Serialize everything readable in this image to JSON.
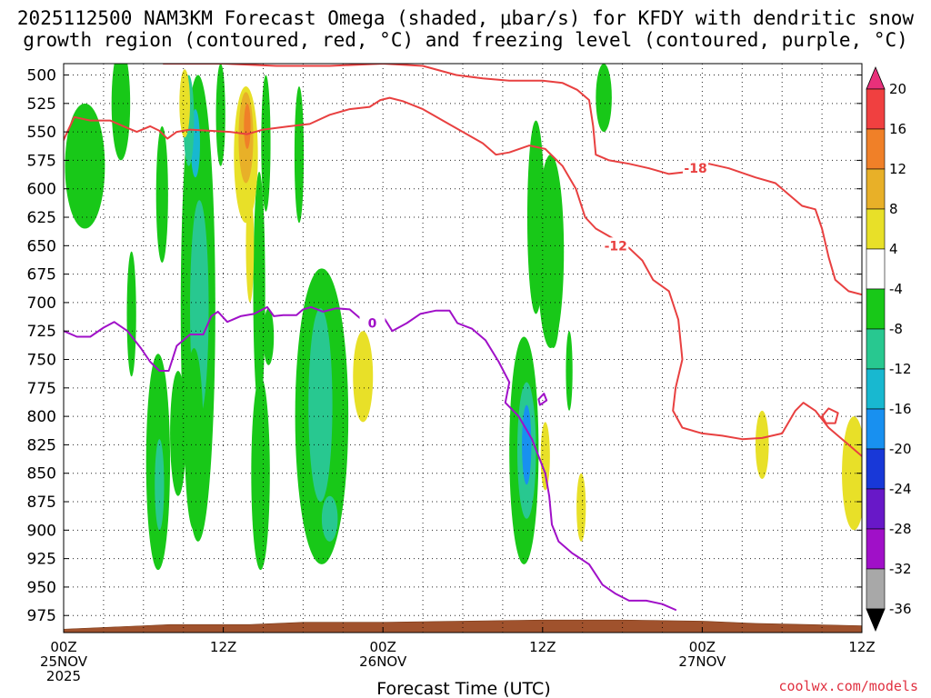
{
  "header": {
    "title_line1": "2025112500 NAM3KM Forecast Omega (shaded, μbar/s) for KFDY with dendritic snow",
    "title_line2": "growth region (contoured, red, °C) and freezing level (contoured, purple, °C)"
  },
  "footer": {
    "credit": "coolwx.com/models"
  },
  "chart_data": {
    "type": "time-height cross section",
    "title": "2025112500 NAM3KM Forecast Omega (shaded, μbar/s) for KFDY with dendritic snow growth region (contoured, red, °C) and freezing level (contoured, purple, °C)",
    "xlabel": "Forecast Time (UTC)",
    "ylabel": "",
    "x_range_hours": [
      0,
      60
    ],
    "y_range_hpa": [
      490,
      990
    ],
    "grid": true,
    "y_ticks": [
      500,
      525,
      550,
      575,
      600,
      625,
      650,
      675,
      700,
      725,
      750,
      775,
      800,
      825,
      850,
      875,
      900,
      925,
      950,
      975
    ],
    "x_ticks": [
      {
        "hour": 0,
        "line1": "00Z",
        "line2": "25NOV",
        "line3": "2025"
      },
      {
        "hour": 12,
        "line1": "12Z",
        "line2": "",
        "line3": ""
      },
      {
        "hour": 24,
        "line1": "00Z",
        "line2": "26NOV",
        "line3": ""
      },
      {
        "hour": 36,
        "line1": "12Z",
        "line2": "",
        "line3": ""
      },
      {
        "hour": 48,
        "line1": "00Z",
        "line2": "27NOV",
        "line3": ""
      },
      {
        "hour": 60,
        "line1": "12Z",
        "line2": "",
        "line3": ""
      }
    ],
    "colorbar": {
      "labels": [
        "20",
        "16",
        "12",
        "8",
        "4",
        "-4",
        "-8",
        "-12",
        "-16",
        "-20",
        "-24",
        "-28",
        "-32",
        "-36"
      ],
      "bins": [
        {
          "color": "#e8307a",
          "label": ">20"
        },
        {
          "color": "#f04040",
          "label": "16 to 20"
        },
        {
          "color": "#f08028",
          "label": "12 to 16"
        },
        {
          "color": "#e8b028",
          "label": "8 to 12"
        },
        {
          "color": "#e8e028",
          "label": "4 to 8"
        },
        {
          "color": "#ffffff",
          "label": "-4 to 4"
        },
        {
          "color": "#18c818",
          "label": "-8 to -4"
        },
        {
          "color": "#28c890",
          "label": "-12 to -8"
        },
        {
          "color": "#18b8d0",
          "label": "-16 to -12"
        },
        {
          "color": "#1890f0",
          "label": "-20 to -16"
        },
        {
          "color": "#1838d8",
          "label": "-24 to -20"
        },
        {
          "color": "#6818c8",
          "label": "-28 to -24"
        },
        {
          "color": "#a010c8",
          "label": "-32 to -28"
        },
        {
          "color": "#a8a8a8",
          "label": "-36 to -32"
        },
        {
          "color": "#000000",
          "label": "<-36"
        }
      ]
    },
    "omega_regions": [
      {
        "t": 1.6,
        "p": 580,
        "dt": 1.5,
        "dp": 55,
        "value": -6
      },
      {
        "t": 4.3,
        "p": 525,
        "dt": 0.7,
        "dp": 50,
        "value": -6
      },
      {
        "t": 5.1,
        "p": 710,
        "dt": 0.35,
        "dp": 55,
        "value": -6
      },
      {
        "t": 7.4,
        "p": 605,
        "dt": 0.45,
        "dp": 60,
        "value": -6
      },
      {
        "t": 7.1,
        "p": 840,
        "dt": 0.9,
        "dp": 95,
        "value": -6
      },
      {
        "t": 7.2,
        "p": 860,
        "dt": 0.35,
        "dp": 40,
        "value": -10
      },
      {
        "t": 8.6,
        "p": 815,
        "dt": 0.6,
        "dp": 55,
        "value": -6
      },
      {
        "t": 10.1,
        "p": 705,
        "dt": 1.3,
        "dp": 205,
        "value": -6
      },
      {
        "t": 10.2,
        "p": 705,
        "dt": 0.7,
        "dp": 95,
        "value": -10
      },
      {
        "t": 9.9,
        "p": 560,
        "dt": 0.35,
        "dp": 30,
        "value": -14
      },
      {
        "t": 9.4,
        "p": 540,
        "dt": 0.4,
        "dp": 40,
        "value": -10
      },
      {
        "t": 9.8,
        "p": 820,
        "dt": 0.7,
        "dp": 80,
        "value": -6
      },
      {
        "t": 11.8,
        "p": 535,
        "dt": 0.35,
        "dp": 45,
        "value": -6
      },
      {
        "t": 14.7,
        "p": 690,
        "dt": 0.45,
        "dp": 105,
        "value": -6
      },
      {
        "t": 15.2,
        "p": 560,
        "dt": 0.35,
        "dp": 60,
        "value": -6
      },
      {
        "t": 14.8,
        "p": 850,
        "dt": 0.7,
        "dp": 85,
        "value": -6
      },
      {
        "t": 15.4,
        "p": 730,
        "dt": 0.4,
        "dp": 25,
        "value": -6
      },
      {
        "t": 17.7,
        "p": 570,
        "dt": 0.35,
        "dp": 60,
        "value": -6
      },
      {
        "t": 19.4,
        "p": 800,
        "dt": 2.0,
        "dp": 130,
        "value": -6
      },
      {
        "t": 19.3,
        "p": 790,
        "dt": 0.9,
        "dp": 85,
        "value": -10
      },
      {
        "t": 20.0,
        "p": 890,
        "dt": 0.6,
        "dp": 20,
        "value": -10
      },
      {
        "t": 34.6,
        "p": 830,
        "dt": 1.1,
        "dp": 100,
        "value": -6
      },
      {
        "t": 34.8,
        "p": 830,
        "dt": 0.7,
        "dp": 60,
        "value": -10
      },
      {
        "t": 34.8,
        "p": 825,
        "dt": 0.35,
        "dp": 35,
        "value": -16
      },
      {
        "t": 34.9,
        "p": 810,
        "dt": 0.2,
        "dp": 15,
        "value": -18
      },
      {
        "t": 35.5,
        "p": 625,
        "dt": 0.65,
        "dp": 85,
        "value": -6
      },
      {
        "t": 36.6,
        "p": 655,
        "dt": 1.0,
        "dp": 85,
        "value": -6
      },
      {
        "t": 36.8,
        "p": 700,
        "dt": 0.5,
        "dp": 40,
        "value": -6
      },
      {
        "t": 38.0,
        "p": 760,
        "dt": 0.25,
        "dp": 35,
        "value": -6
      },
      {
        "t": 40.6,
        "p": 520,
        "dt": 0.6,
        "dp": 30,
        "value": -6
      },
      {
        "t": 9.1,
        "p": 525,
        "dt": 0.4,
        "dp": 30,
        "value": 6
      },
      {
        "t": 13.7,
        "p": 570,
        "dt": 0.9,
        "dp": 60,
        "value": 6
      },
      {
        "t": 13.7,
        "p": 555,
        "dt": 0.55,
        "dp": 40,
        "value": 10
      },
      {
        "t": 13.8,
        "p": 545,
        "dt": 0.25,
        "dp": 20,
        "value": 14
      },
      {
        "t": 14.0,
        "p": 650,
        "dt": 0.3,
        "dp": 50,
        "value": 6
      },
      {
        "t": 22.5,
        "p": 765,
        "dt": 0.75,
        "dp": 40,
        "value": 6
      },
      {
        "t": 36.2,
        "p": 835,
        "dt": 0.35,
        "dp": 30,
        "value": 6
      },
      {
        "t": 38.9,
        "p": 880,
        "dt": 0.35,
        "dp": 30,
        "value": 6
      },
      {
        "t": 52.5,
        "p": 825,
        "dt": 0.5,
        "dp": 30,
        "value": 6
      },
      {
        "t": 59.4,
        "p": 850,
        "dt": 0.9,
        "dp": 50,
        "value": 6
      }
    ],
    "series": [
      {
        "name": "-12 °C isotherm (upper)",
        "color": "#e84040",
        "label": "-12",
        "label_at": [
          41.5,
          650
        ],
        "points": [
          [
            0,
            557
          ],
          [
            0.8,
            537
          ],
          [
            2,
            540
          ],
          [
            3.5,
            540
          ],
          [
            4.5,
            545
          ],
          [
            5.5,
            550
          ],
          [
            6.5,
            545
          ],
          [
            7.2,
            549
          ],
          [
            7.8,
            556
          ],
          [
            8.5,
            550
          ],
          [
            9.5,
            548
          ],
          [
            11,
            549
          ],
          [
            12.5,
            550
          ],
          [
            13.8,
            552
          ],
          [
            15,
            548
          ],
          [
            17,
            545
          ],
          [
            18.5,
            543
          ],
          [
            20,
            535
          ],
          [
            21.5,
            530
          ],
          [
            23,
            528
          ],
          [
            23.8,
            522
          ],
          [
            24.5,
            520
          ],
          [
            25.5,
            523
          ],
          [
            27,
            530
          ],
          [
            28.5,
            540
          ],
          [
            30,
            550
          ],
          [
            31.5,
            560
          ],
          [
            32.5,
            570
          ],
          [
            33.5,
            568
          ],
          [
            35,
            562
          ],
          [
            36.2,
            565
          ],
          [
            37.5,
            580
          ],
          [
            38.5,
            600
          ],
          [
            39.2,
            625
          ],
          [
            40,
            635
          ],
          [
            41.5,
            645
          ],
          [
            42.5,
            652
          ],
          [
            43.5,
            663
          ],
          [
            44.3,
            680
          ],
          [
            45.5,
            690
          ],
          [
            46.2,
            715
          ],
          [
            46.5,
            750
          ],
          [
            46,
            775
          ],
          [
            45.8,
            795
          ],
          [
            46.5,
            810
          ],
          [
            48,
            815
          ],
          [
            49.5,
            817
          ],
          [
            51,
            820
          ],
          [
            52.5,
            819
          ],
          [
            54,
            815
          ],
          [
            55,
            795
          ],
          [
            55.6,
            788
          ],
          [
            56.5,
            795
          ],
          [
            57.5,
            810
          ],
          [
            59,
            825
          ],
          [
            60,
            835
          ]
        ]
      },
      {
        "name": "-12 °C isotherm (small closed)",
        "color": "#e84040",
        "label": "",
        "label_at": [
          0,
          0
        ],
        "points": [
          [
            57.0,
            800
          ],
          [
            57.5,
            793
          ],
          [
            58.2,
            797
          ],
          [
            58.0,
            806
          ],
          [
            57.3,
            806
          ],
          [
            57.0,
            800
          ]
        ]
      },
      {
        "name": "-18 °C isotherm",
        "color": "#e84040",
        "label": "-18",
        "label_at": [
          47.5,
          582
        ],
        "points": [
          [
            7.5,
            490
          ],
          [
            12,
            490
          ],
          [
            16,
            492
          ],
          [
            20,
            492
          ],
          [
            24,
            490
          ],
          [
            27,
            492
          ],
          [
            29.5,
            500
          ],
          [
            31.5,
            503
          ],
          [
            33.5,
            505
          ],
          [
            36,
            505
          ],
          [
            37.5,
            507
          ],
          [
            38.6,
            513
          ],
          [
            39.5,
            522
          ],
          [
            39.8,
            545
          ],
          [
            40,
            570
          ],
          [
            41,
            575
          ],
          [
            42.5,
            578
          ],
          [
            44,
            582
          ],
          [
            45.5,
            587
          ],
          [
            47,
            585
          ],
          [
            48.5,
            578
          ],
          [
            50,
            582
          ],
          [
            52,
            590
          ],
          [
            53.5,
            595
          ],
          [
            54.5,
            605
          ],
          [
            55.5,
            615
          ],
          [
            56.5,
            618
          ],
          [
            57,
            635
          ],
          [
            57.5,
            660
          ],
          [
            58,
            680
          ],
          [
            59,
            690
          ],
          [
            60,
            693
          ]
        ]
      },
      {
        "name": "0 °C freezing level",
        "color": "#a010c8",
        "label": "0",
        "label_at": [
          23.2,
          718
        ],
        "points": [
          [
            0,
            725
          ],
          [
            1,
            730
          ],
          [
            2,
            730
          ],
          [
            3,
            722
          ],
          [
            3.8,
            717
          ],
          [
            4.8,
            725
          ],
          [
            5.8,
            740
          ],
          [
            6.5,
            752
          ],
          [
            7.2,
            760
          ],
          [
            7.9,
            760
          ],
          [
            8.5,
            738
          ],
          [
            9.5,
            728
          ],
          [
            10.5,
            728
          ],
          [
            11.1,
            712
          ],
          [
            11.6,
            708
          ],
          [
            12.3,
            717
          ],
          [
            13.3,
            712
          ],
          [
            14.3,
            710
          ],
          [
            15.3,
            704
          ],
          [
            15.8,
            712
          ],
          [
            16.5,
            711
          ],
          [
            17.5,
            711
          ],
          [
            18,
            706
          ],
          [
            18.6,
            704
          ],
          [
            19.5,
            708
          ],
          [
            20.5,
            705
          ],
          [
            21.5,
            706
          ],
          [
            22.3,
            714
          ],
          [
            23.2,
            714
          ],
          [
            24,
            712
          ],
          [
            24.7,
            725
          ],
          [
            25.8,
            718
          ],
          [
            26.8,
            710
          ],
          [
            28,
            707
          ],
          [
            29,
            707
          ],
          [
            29.6,
            718
          ],
          [
            30.7,
            723
          ],
          [
            31.7,
            733
          ],
          [
            32.7,
            752
          ],
          [
            33.5,
            770
          ],
          [
            33.2,
            788
          ],
          [
            34.2,
            800
          ],
          [
            35.2,
            820
          ],
          [
            36.2,
            850
          ],
          [
            36.5,
            870
          ],
          [
            36.7,
            895
          ],
          [
            37.2,
            910
          ],
          [
            38.2,
            920
          ],
          [
            39.5,
            930
          ],
          [
            40.5,
            948
          ],
          [
            41.5,
            956
          ],
          [
            42.5,
            962
          ],
          [
            43.8,
            962
          ],
          [
            45,
            965
          ],
          [
            46,
            970
          ]
        ]
      },
      {
        "name": "0 °C freezing level (small closed)",
        "color": "#a010c8",
        "label": "",
        "label_at": [
          0,
          0
        ],
        "points": [
          [
            35.7,
            785
          ],
          [
            36.1,
            780
          ],
          [
            36.3,
            786
          ],
          [
            35.8,
            790
          ],
          [
            35.7,
            785
          ]
        ]
      }
    ],
    "terrain": {
      "color": "#a0522d",
      "surface_points": [
        [
          0,
          987
        ],
        [
          2,
          986
        ],
        [
          4,
          985
        ],
        [
          6,
          984
        ],
        [
          8,
          983
        ],
        [
          10,
          983
        ],
        [
          14,
          983
        ],
        [
          18,
          981
        ],
        [
          24,
          981
        ],
        [
          30,
          980
        ],
        [
          36,
          979
        ],
        [
          42,
          979
        ],
        [
          48,
          980
        ],
        [
          52,
          982
        ],
        [
          56,
          983
        ],
        [
          60,
          984
        ]
      ]
    }
  }
}
